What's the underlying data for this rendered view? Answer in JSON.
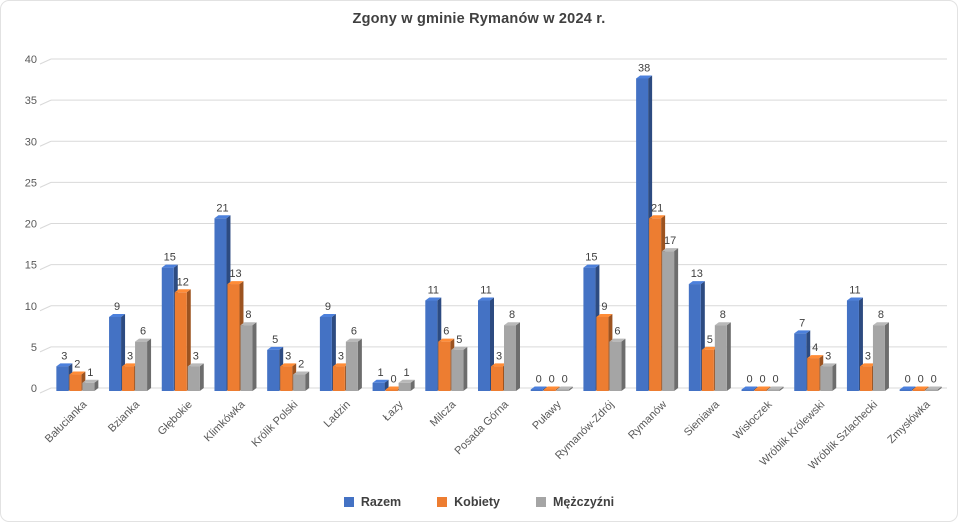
{
  "title": "Zgony w gminie Rymanów w 2024 r.",
  "chart_data": {
    "type": "bar",
    "style": "3d-clustered-column",
    "title": "Zgony w gminie Rymanów w 2024 r.",
    "categories": [
      "Bałucianka",
      "Bzianka",
      "Głębokie",
      "Klimkówka",
      "Królik Polski",
      "Ladzin",
      "Łazy",
      "Milcza",
      "Posada Górna",
      "Puławy",
      "Rymanów-Zdrój",
      "Rymanów",
      "Sieniawa",
      "Wisłoczek",
      "Wróblik Królewski",
      "Wróblik Szlachecki",
      "Zmysłówka"
    ],
    "series": [
      {
        "name": "Razem",
        "color": "#4472C4",
        "values": [
          3,
          9,
          15,
          21,
          5,
          9,
          1,
          11,
          11,
          0,
          15,
          38,
          13,
          0,
          7,
          11,
          0
        ]
      },
      {
        "name": "Kobiety",
        "color": "#ED7D31",
        "values": [
          2,
          3,
          12,
          13,
          3,
          3,
          0,
          6,
          3,
          0,
          9,
          21,
          5,
          0,
          4,
          3,
          0
        ]
      },
      {
        "name": "Mężczyźni",
        "color": "#A5A5A5",
        "values": [
          1,
          6,
          3,
          8,
          2,
          6,
          1,
          5,
          8,
          0,
          6,
          17,
          8,
          0,
          3,
          8,
          0
        ]
      }
    ],
    "xlabel": "",
    "ylabel": "",
    "ylim": [
      0,
      40
    ],
    "yticks": [
      0,
      5,
      10,
      15,
      20,
      25,
      30,
      35,
      40
    ],
    "grid": true,
    "legend_position": "bottom",
    "data_labels": true,
    "colors": {
      "gridline": "#d9d9d9",
      "axis_text": "#595959",
      "data_label_text": "#404040",
      "title_text": "#404040"
    }
  }
}
